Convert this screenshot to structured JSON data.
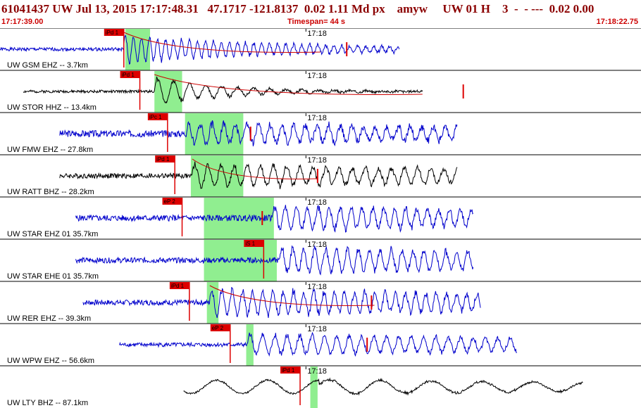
{
  "header": {
    "event_line": "61041437 UW Jul 13, 2015 17:17:48.31   47.1717 -121.8137  0.02 1.11 Md px    amyw     UW 01 H    3  -  - ---  0.02 0.00",
    "start_time": "17:17:39.00",
    "timespan": "Timespan=  44 s",
    "end_time": "17:18:22.75"
  },
  "colors": {
    "title": "#8b0000",
    "red": "#cc0000",
    "blue": "#0000cc",
    "black": "#000000",
    "green": "#90ee90",
    "pick": "#dd0000"
  },
  "chart_data": {
    "type": "line",
    "title": "61041437 UW Jul 13, 2015 17:17:48.31",
    "time_range": [
      "17:17:39.00",
      "17:18:22.75"
    ],
    "timespan_s": 44,
    "tick_label": "17:18",
    "tick_time_s": 21,
    "traces": [
      {
        "label": "UW GSM EHZ -- 3.7km",
        "color": "blue",
        "data_start": 0,
        "data_end": 27.4,
        "noise": 0.1,
        "onset": 8.5,
        "amp": 0.9,
        "period": 0.55,
        "decay": 12,
        "pick": "iPd 1",
        "pick_t": 8.5,
        "green": [
          8.6,
          10.3
        ],
        "coda_end": 22,
        "coda_mark": 23.8,
        "seed": 1
      },
      {
        "label": "UW STOR HHZ -- 13.4km",
        "color": "black",
        "data_start": 1.6,
        "data_end": 29.0,
        "noise": 0.08,
        "onset": 10.6,
        "amp": 0.9,
        "period": 1.1,
        "decay": 5,
        "pick": "iPd 1",
        "pick_t": 9.6,
        "green": [
          10.6,
          12.5
        ],
        "coda_end": 29,
        "coda_mark": 31.8,
        "seed": 2
      },
      {
        "label": "UW FMW EHZ -- 27.8km",
        "color": "blue",
        "data_start": 4.1,
        "data_end": 31.4,
        "noise": 0.2,
        "onset": 12.8,
        "amp": 0.7,
        "period": 0.8,
        "decay": 40,
        "pick": "iPc 1",
        "pick_t": 11.5,
        "green": [
          12.7,
          16.7
        ],
        "coda_end": null,
        "coda_mark": 17.2,
        "seed": 3
      },
      {
        "label": "UW RATT BHZ -- 28.2km",
        "color": "black",
        "data_start": 4.1,
        "data_end": 31.4,
        "noise": 0.15,
        "onset": 13.2,
        "amp": 0.75,
        "period": 0.9,
        "decay": 40,
        "pick": "iPd 1",
        "pick_t": 12.0,
        "green": [
          13.1,
          16.7
        ],
        "coda_end": 21.8,
        "coda_mark": 21.8,
        "seed": 4
      },
      {
        "label": "UW STAR EHZ 01 35.7km",
        "color": "blue",
        "data_start": 5.2,
        "data_end": 32.5,
        "noise": 0.18,
        "onset": 18.7,
        "amp": 0.8,
        "period": 0.75,
        "decay": 40,
        "pick": "eP 2",
        "pick_t": 12.5,
        "green": [
          14.0,
          18.8
        ],
        "coda_end": null,
        "coda_mark": 18.0,
        "seed": 5
      },
      {
        "label": "UW STAR EHE 01 35.7km",
        "color": "blue",
        "data_start": 5.2,
        "data_end": 32.5,
        "noise": 0.16,
        "onset": 19.2,
        "amp": 0.85,
        "period": 0.75,
        "decay": 40,
        "pick": "iS 1",
        "pick_t": 18.1,
        "green": [
          14.0,
          19.0
        ],
        "coda_end": null,
        "coda_mark": null,
        "seed": 6
      },
      {
        "label": "UW RER EHZ -- 39.3km",
        "color": "blue",
        "data_start": 5.7,
        "data_end": 33.0,
        "noise": 0.16,
        "onset": 14.4,
        "amp": 0.9,
        "period": 0.7,
        "decay": 40,
        "pick": "iPd 1",
        "pick_t": 13.0,
        "green": [
          14.2,
          15.0
        ],
        "coda_end": 25.7,
        "coda_mark": 25.5,
        "seed": 7
      },
      {
        "label": "UW WPW EHZ -- 56.6km",
        "color": "blue",
        "data_start": 8.2,
        "data_end": 35.5,
        "noise": 0.12,
        "onset": 17.0,
        "amp": 0.7,
        "period": 0.85,
        "decay": 40,
        "pick": "eP 2",
        "pick_t": 15.8,
        "green": [
          16.9,
          17.4
        ],
        "coda_end": null,
        "coda_mark": 25.2,
        "seed": 8
      },
      {
        "label": "UW LTY BHZ -- 87.1km",
        "color": "black",
        "data_start": 12.6,
        "data_end": 40.0,
        "noise": 0.05,
        "onset": 21.9,
        "amp": 0.5,
        "period": 3.5,
        "decay": 40,
        "pick": "iPd 1",
        "pick_t": 20.6,
        "green": [
          21.3,
          21.8
        ],
        "coda_end": null,
        "coda_mark": null,
        "seed": 9
      }
    ]
  }
}
